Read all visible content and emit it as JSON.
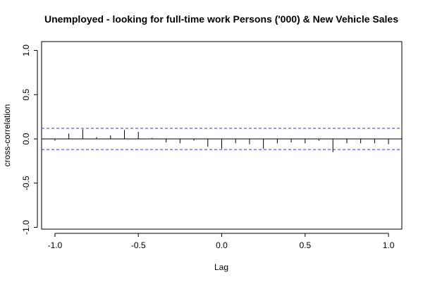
{
  "chart_data": {
    "type": "bar",
    "title": "Unemployed - looking for full-time work Persons ('000) & New Vehicle Sales",
    "xlabel": "Lag",
    "ylabel": "cross-correlation",
    "xlim": [
      -1.08,
      1.08
    ],
    "ylim": [
      -1.02,
      1.1
    ],
    "x_ticks": [
      -1.0,
      -0.5,
      0.0,
      0.5,
      1.0
    ],
    "x_tick_labels": [
      "-1.0",
      "-0.5",
      "0.0",
      "0.5",
      "1.0"
    ],
    "y_ticks": [
      -1.0,
      -0.5,
      0.0,
      0.5,
      1.0
    ],
    "y_tick_labels": [
      "-1.0",
      "-0.5",
      "0.0",
      "0.5",
      "1.0"
    ],
    "confidence_band": 0.12,
    "confidence_color": "#3333ff",
    "grid": false,
    "lag": [
      -1.0,
      -0.9167,
      -0.8333,
      -0.75,
      -0.6667,
      -0.5833,
      -0.5,
      -0.4167,
      -0.3333,
      -0.25,
      -0.1667,
      -0.0833,
      0.0,
      0.0833,
      0.1667,
      0.25,
      0.3333,
      0.4167,
      0.5,
      0.5833,
      0.6667,
      0.75,
      0.8333,
      0.9167,
      1.0
    ],
    "values": [
      -0.02,
      0.06,
      0.11,
      0.02,
      0.04,
      0.1,
      0.08,
      0.01,
      -0.04,
      -0.05,
      -0.02,
      -0.09,
      -0.11,
      -0.05,
      -0.06,
      -0.11,
      -0.05,
      -0.04,
      -0.05,
      -0.02,
      -0.15,
      -0.05,
      -0.05,
      -0.05,
      -0.06
    ]
  }
}
